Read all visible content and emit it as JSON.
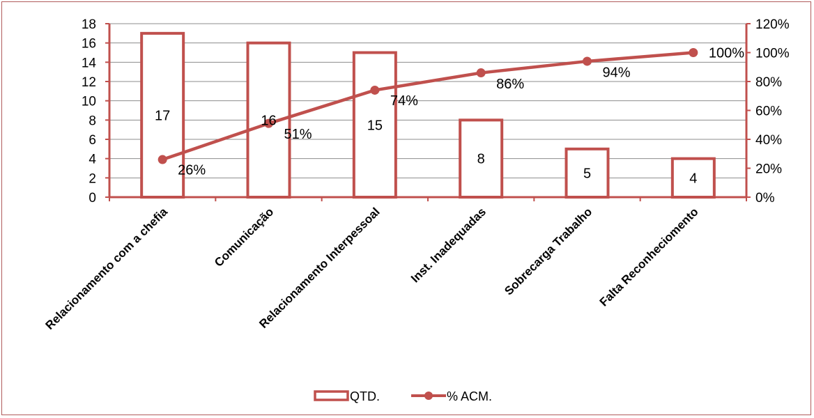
{
  "chart_data": {
    "type": "bar",
    "categories": [
      "Relacionamento com a chefia",
      "Comunicação",
      "Relacionamento Interpessoal",
      "Inst. Inadequadas",
      "Sobrecarga Trabalho",
      "Falta Reconheciomento"
    ],
    "series": [
      {
        "name": "QTD.",
        "type": "bar",
        "axis": "left",
        "values": [
          17,
          16,
          15,
          8,
          5,
          4
        ],
        "labels": [
          "17",
          "16",
          "15",
          "8",
          "5",
          "4"
        ]
      },
      {
        "name": "% ACM.",
        "type": "line",
        "axis": "right",
        "values": [
          0.26,
          0.51,
          0.74,
          0.86,
          0.94,
          1.0
        ],
        "labels": [
          "26%",
          "51%",
          "74%",
          "86%",
          "94%",
          "100%"
        ]
      }
    ],
    "ylim": [
      0,
      18
    ],
    "yticks": [
      "0",
      "2",
      "4",
      "6",
      "8",
      "10",
      "12",
      "14",
      "16",
      "18"
    ],
    "y2lim": [
      0,
      1.2
    ],
    "y2ticks": [
      "0%",
      "20%",
      "40%",
      "60%",
      "80%",
      "100%",
      "120%"
    ],
    "grid": true,
    "legend_position": "bottom",
    "colors": {
      "accent": "#c0504d",
      "grid": "#8c8c8c"
    }
  }
}
